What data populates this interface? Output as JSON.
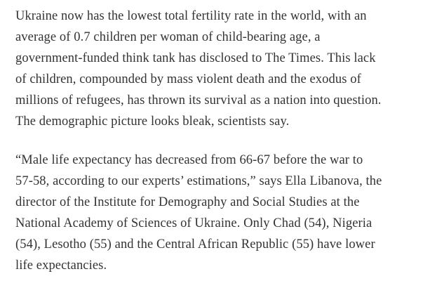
{
  "page": {
    "background_color": "#ffffff",
    "text_color": "#333333"
  },
  "article": {
    "paragraphs": [
      {
        "lines": [
          "Ukraine now has the lowest total fertility rate in the world, with an",
          "average of 0.7 children per woman of child-bearing age, a",
          "government-funded think tank has disclosed to The Times. This lack",
          "of children, compounded by mass violent death and the exodus of",
          "millions of refugees, has thrown its survival as a nation into question.",
          "The demographic picture looks bleak, scientists say."
        ]
      },
      {
        "lines": [
          "“Male life expectancy has decreased from 66-67 before the war to",
          "57-58, according to our experts’ estimations,” says Ella Libanova, the",
          "director of the Institute for Demography and Social Studies at the",
          "National Academy of Sciences of Ukraine. Only Chad (54), Nigeria",
          "(54), Lesotho (55) and the Central African Republic (55) have lower",
          "life expectancies."
        ]
      }
    ]
  }
}
